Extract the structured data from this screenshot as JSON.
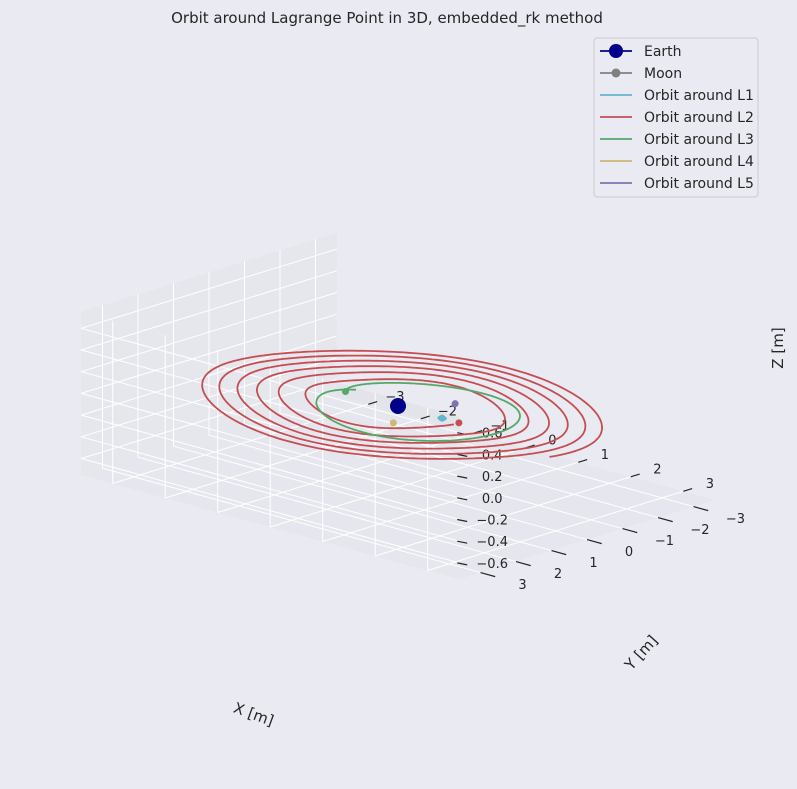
{
  "chart_data": {
    "type": "line",
    "title": "Orbit around Lagrange Point in 3D, embedded_rk method",
    "xlabel": "X [m]",
    "ylabel": "Y [m]",
    "zlabel": "Z [m]",
    "x_ticks": [
      "−3",
      "−2",
      "−1",
      "0",
      "1",
      "2",
      "3"
    ],
    "y_ticks": [
      "−3",
      "−2",
      "−1",
      "0",
      "1",
      "2",
      "3"
    ],
    "z_ticks": [
      "−0.6",
      "−0.4",
      "−0.2",
      "0.0",
      "0.2",
      "0.4",
      "0.6"
    ],
    "xlim": [
      -3.6,
      3.6
    ],
    "ylim": [
      -3.6,
      3.6
    ],
    "zlim": [
      -0.75,
      0.75
    ],
    "grid": true,
    "legend_position": "top-right",
    "colors": {
      "background_pane": "#eaeaf2",
      "grid": "#ffffff",
      "earth": "#00008b",
      "moon": "#808080",
      "L1": "#64b5cd",
      "L2": "#c44e52",
      "L3": "#55a868",
      "L4": "#ccb974",
      "L5": "#8172b2"
    },
    "legend": [
      {
        "label": "Earth",
        "key": "earth",
        "kind": "big-marker"
      },
      {
        "label": "Moon",
        "key": "moon",
        "kind": "marker"
      },
      {
        "label": "Orbit around L1",
        "key": "L1",
        "kind": "line"
      },
      {
        "label": "Orbit around L2",
        "key": "L2",
        "kind": "line"
      },
      {
        "label": "Orbit around L3",
        "key": "L3",
        "kind": "line"
      },
      {
        "label": "Orbit around L4",
        "key": "L4",
        "kind": "line"
      },
      {
        "label": "Orbit around L5",
        "key": "L5",
        "kind": "line"
      }
    ],
    "points": {
      "earth": [
        0,
        0,
        0
      ],
      "L1": [
        0.84,
        0.0,
        0.0
      ],
      "L2": [
        1.16,
        0.0,
        0.0
      ],
      "L3": [
        -1.0,
        0.0,
        0.0
      ],
      "L4": [
        0.5,
        0.87,
        0.0
      ],
      "L5": [
        0.5,
        -0.87,
        0.0
      ]
    },
    "orbits": {
      "L2_spiral": {
        "r_start": 1.2,
        "r_end": 3.25,
        "turns": 6,
        "z_amp": 0.02
      },
      "L3_loop": {
        "r_start": 1.0,
        "r_end": 2.0,
        "turns": 1.05
      },
      "L1_cluster": {
        "r": 0.05
      }
    }
  }
}
